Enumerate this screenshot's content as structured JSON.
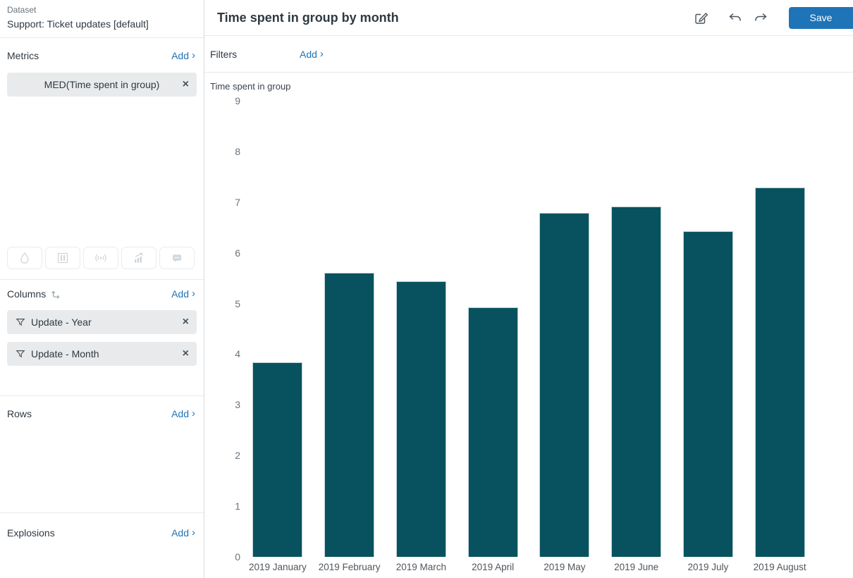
{
  "ui": {
    "chevron": "›",
    "close_glyph": "×"
  },
  "colors": {
    "accent_blue": "#1f73b7",
    "bar_fill": "#07525e",
    "bar_border": "#bdd0d6",
    "text_dark": "#2f3941",
    "text_gray": "#68737d",
    "pill_bg": "#e8eaec"
  },
  "sidebar": {
    "dataset": {
      "label": "Dataset",
      "name": "Support: Ticket updates [default]"
    },
    "metrics": {
      "title": "Metrics",
      "add_label": "Add",
      "pills": [
        {
          "label": "MED(Time spent in group)"
        }
      ]
    },
    "tools": [
      {
        "icon": "droplet-icon"
      },
      {
        "icon": "table-columns-icon"
      },
      {
        "icon": "broadcast-icon"
      },
      {
        "icon": "trend-chart-icon"
      },
      {
        "icon": "chat-icon"
      }
    ],
    "columns": {
      "title": "Columns",
      "add_label": "Add",
      "pills": [
        {
          "label": "Update - Year"
        },
        {
          "label": "Update - Month"
        }
      ]
    },
    "rows": {
      "title": "Rows",
      "add_label": "Add"
    },
    "explosions": {
      "title": "Explosions",
      "add_label": "Add"
    }
  },
  "header": {
    "title": "Time spent in group by month",
    "save_label": "Save"
  },
  "filters": {
    "label": "Filters",
    "add_label": "Add"
  },
  "chart_data": {
    "type": "bar",
    "title": "",
    "ylabel": "Time spent in group",
    "xlabel": "",
    "categories": [
      "2019 January",
      "2019 February",
      "2019 March",
      "2019 April",
      "2019 May",
      "2019 June",
      "2019 July",
      "2019 August"
    ],
    "values": [
      3.84,
      5.6,
      5.44,
      4.93,
      6.79,
      6.92,
      6.42,
      7.29
    ],
    "ylim": [
      0,
      9
    ],
    "yticks": [
      0,
      1,
      2,
      3,
      4,
      5,
      6,
      7,
      8,
      9
    ],
    "grid": false,
    "legend": false,
    "bar_color": "#07525e"
  }
}
